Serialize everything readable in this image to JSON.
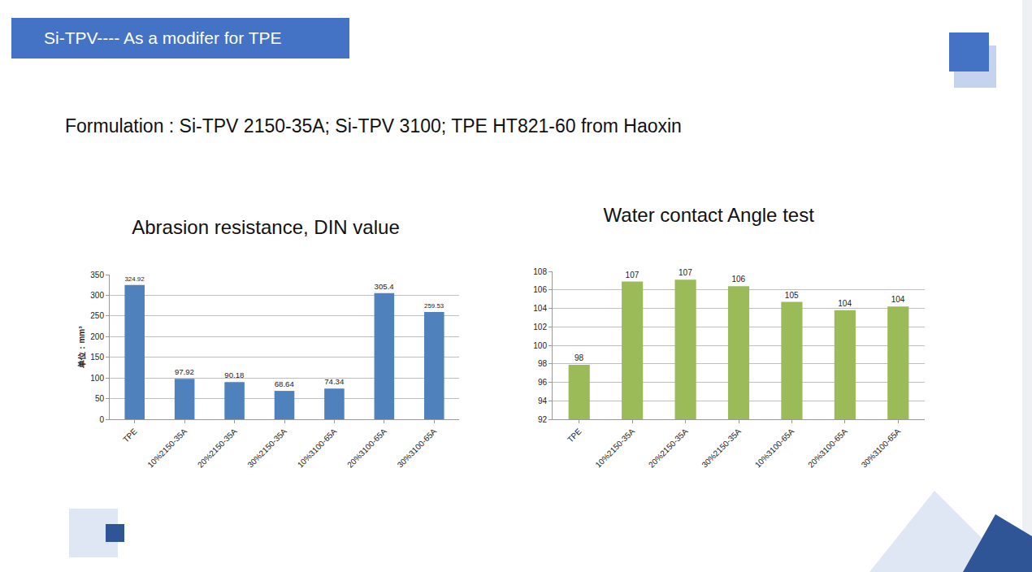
{
  "slide": {
    "header": "Si-TPV---- As a modifer for TPE",
    "formulation": "Formulation : Si-TPV 2150-35A; Si-TPV 3100; TPE HT821-60 from Haoxin"
  },
  "chart_data": [
    {
      "type": "bar",
      "title": "Abrasion resistance, DIN value",
      "y_label": "单位：mm³",
      "categories": [
        "TPE",
        "10%2150-35A",
        "20%2150-35A",
        "30%2150-35A",
        "10%3100-65A",
        "20%3100-65A",
        "30%3100-65A"
      ],
      "values": [
        324.92,
        97.92,
        90.18,
        68.64,
        74.34,
        305.4,
        259.53
      ],
      "color": "#4f81bd",
      "ylim": [
        0,
        350
      ],
      "yticks": [
        0,
        50,
        100,
        150,
        200,
        250,
        300,
        350
      ],
      "grid": true,
      "data_labels": true
    },
    {
      "type": "bar",
      "title": "Water contact Angle test",
      "categories": [
        "TPE",
        "10%2150-35A",
        "20%2150-35A",
        "30%2150-35A",
        "10%3100-65A",
        "20%3100-65A",
        "30%3100-65A"
      ],
      "values": [
        97.9,
        106.9,
        107.1,
        106.4,
        104.7,
        103.8,
        104.2
      ],
      "value_labels": [
        "98",
        "107",
        "107",
        "106",
        "105",
        "104",
        "104"
      ],
      "color": "#9bbb59",
      "ylim": [
        92,
        108
      ],
      "yticks": [
        92,
        94,
        96,
        98,
        100,
        102,
        104,
        106,
        108
      ],
      "grid": true,
      "data_labels": true
    }
  ]
}
